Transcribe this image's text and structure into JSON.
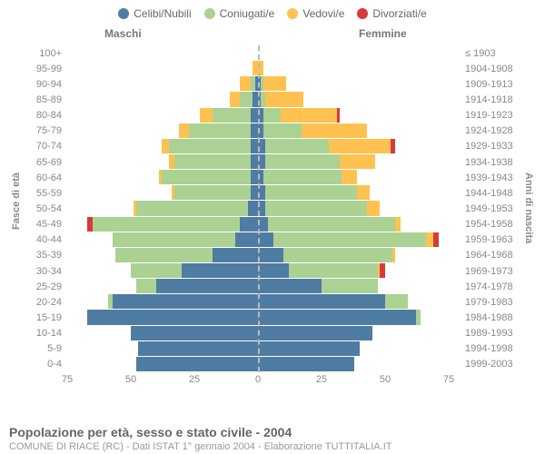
{
  "type": "population-pyramid",
  "title": "Popolazione per età, sesso e stato civile - 2004",
  "subtitle": "COMUNE DI RIACE (RC) - Dati ISTAT 1° gennaio 2004 - Elaborazione TUTTITALIA.IT",
  "col_left_header": "Maschi",
  "col_right_header": "Femmine",
  "y_left_title": "Fasce di età",
  "y_right_title": "Anni di nascita",
  "legend": [
    {
      "label": "Celibi/Nubili",
      "color": "#4f7ca3"
    },
    {
      "label": "Coniugati/e",
      "color": "#abd193"
    },
    {
      "label": "Vedovi/e",
      "color": "#ffc250"
    },
    {
      "label": "Divorziati/e",
      "color": "#d73a3a"
    }
  ],
  "colors": {
    "single": "#4f7ca3",
    "married": "#abd193",
    "widowed": "#ffc250",
    "divorced": "#d73a3a",
    "grid": "#ffffff",
    "center": "#bbbbbb",
    "axis_text": "#888888"
  },
  "xlim": [
    -75,
    75
  ],
  "xticks": [
    {
      "pos": -75,
      "label": "75"
    },
    {
      "pos": -50,
      "label": "50"
    },
    {
      "pos": -25,
      "label": "25"
    },
    {
      "pos": 0,
      "label": "0"
    },
    {
      "pos": 25,
      "label": "25"
    },
    {
      "pos": 50,
      "label": "50"
    },
    {
      "pos": 75,
      "label": "75"
    }
  ],
  "rows": [
    {
      "age": "100+",
      "birth": "≤ 1903",
      "m": {
        "s": 0,
        "m": 0,
        "w": 0,
        "d": 0
      },
      "f": {
        "s": 0,
        "m": 0,
        "w": 0,
        "d": 0
      }
    },
    {
      "age": "95-99",
      "birth": "1904-1908",
      "m": {
        "s": 0,
        "m": 0,
        "w": 2,
        "d": 0
      },
      "f": {
        "s": 0,
        "m": 0,
        "w": 2,
        "d": 0
      }
    },
    {
      "age": "90-94",
      "birth": "1909-1913",
      "m": {
        "s": 1,
        "m": 2,
        "w": 4,
        "d": 0
      },
      "f": {
        "s": 1,
        "m": 1,
        "w": 9,
        "d": 0
      }
    },
    {
      "age": "85-89",
      "birth": "1914-1918",
      "m": {
        "s": 2,
        "m": 5,
        "w": 4,
        "d": 0
      },
      "f": {
        "s": 1,
        "m": 2,
        "w": 15,
        "d": 0
      }
    },
    {
      "age": "80-84",
      "birth": "1919-1923",
      "m": {
        "s": 3,
        "m": 15,
        "w": 5,
        "d": 0
      },
      "f": {
        "s": 2,
        "m": 7,
        "w": 22,
        "d": 1
      }
    },
    {
      "age": "75-79",
      "birth": "1924-1928",
      "m": {
        "s": 3,
        "m": 24,
        "w": 4,
        "d": 0
      },
      "f": {
        "s": 2,
        "m": 15,
        "w": 26,
        "d": 0
      }
    },
    {
      "age": "70-74",
      "birth": "1929-1933",
      "m": {
        "s": 3,
        "m": 32,
        "w": 3,
        "d": 0
      },
      "f": {
        "s": 3,
        "m": 25,
        "w": 24,
        "d": 2
      }
    },
    {
      "age": "65-69",
      "birth": "1934-1938",
      "m": {
        "s": 3,
        "m": 30,
        "w": 2,
        "d": 0
      },
      "f": {
        "s": 3,
        "m": 29,
        "w": 14,
        "d": 0
      }
    },
    {
      "age": "60-64",
      "birth": "1939-1943",
      "m": {
        "s": 3,
        "m": 35,
        "w": 1,
        "d": 0
      },
      "f": {
        "s": 2,
        "m": 31,
        "w": 6,
        "d": 0
      }
    },
    {
      "age": "55-59",
      "birth": "1944-1948",
      "m": {
        "s": 3,
        "m": 30,
        "w": 1,
        "d": 0
      },
      "f": {
        "s": 3,
        "m": 36,
        "w": 5,
        "d": 0
      }
    },
    {
      "age": "50-54",
      "birth": "1949-1953",
      "m": {
        "s": 4,
        "m": 44,
        "w": 1,
        "d": 0
      },
      "f": {
        "s": 3,
        "m": 40,
        "w": 5,
        "d": 0
      }
    },
    {
      "age": "45-49",
      "birth": "1954-1958",
      "m": {
        "s": 7,
        "m": 58,
        "w": 0,
        "d": 2
      },
      "f": {
        "s": 4,
        "m": 50,
        "w": 2,
        "d": 0
      }
    },
    {
      "age": "40-44",
      "birth": "1959-1963",
      "m": {
        "s": 9,
        "m": 48,
        "w": 0,
        "d": 0
      },
      "f": {
        "s": 6,
        "m": 60,
        "w": 3,
        "d": 2
      }
    },
    {
      "age": "35-39",
      "birth": "1964-1968",
      "m": {
        "s": 18,
        "m": 38,
        "w": 0,
        "d": 0
      },
      "f": {
        "s": 10,
        "m": 43,
        "w": 1,
        "d": 0
      }
    },
    {
      "age": "30-34",
      "birth": "1969-1973",
      "m": {
        "s": 30,
        "m": 20,
        "w": 0,
        "d": 0
      },
      "f": {
        "s": 12,
        "m": 35,
        "w": 1,
        "d": 2
      }
    },
    {
      "age": "25-29",
      "birth": "1974-1978",
      "m": {
        "s": 40,
        "m": 8,
        "w": 0,
        "d": 0
      },
      "f": {
        "s": 25,
        "m": 22,
        "w": 0,
        "d": 0
      }
    },
    {
      "age": "20-24",
      "birth": "1979-1983",
      "m": {
        "s": 57,
        "m": 2,
        "w": 0,
        "d": 0
      },
      "f": {
        "s": 50,
        "m": 9,
        "w": 0,
        "d": 0
      }
    },
    {
      "age": "15-19",
      "birth": "1984-1988",
      "m": {
        "s": 67,
        "m": 0,
        "w": 0,
        "d": 0
      },
      "f": {
        "s": 62,
        "m": 2,
        "w": 0,
        "d": 0
      }
    },
    {
      "age": "10-14",
      "birth": "1989-1993",
      "m": {
        "s": 50,
        "m": 0,
        "w": 0,
        "d": 0
      },
      "f": {
        "s": 45,
        "m": 0,
        "w": 0,
        "d": 0
      }
    },
    {
      "age": "5-9",
      "birth": "1994-1998",
      "m": {
        "s": 47,
        "m": 0,
        "w": 0,
        "d": 0
      },
      "f": {
        "s": 40,
        "m": 0,
        "w": 0,
        "d": 0
      }
    },
    {
      "age": "0-4",
      "birth": "1999-2003",
      "m": {
        "s": 48,
        "m": 0,
        "w": 0,
        "d": 0
      },
      "f": {
        "s": 38,
        "m": 0,
        "w": 0,
        "d": 0
      }
    }
  ]
}
